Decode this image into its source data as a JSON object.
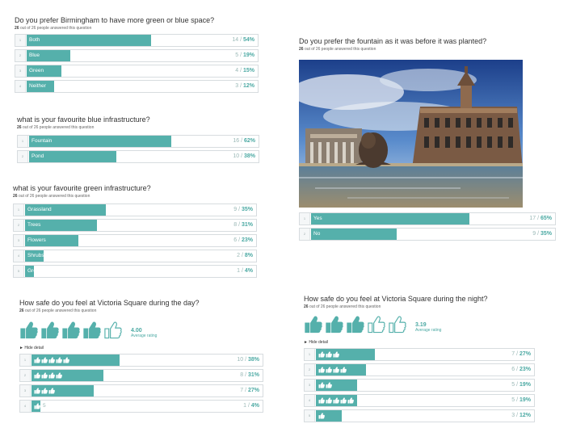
{
  "q1": {
    "title": "Do you prefer Birmingham to have more green or blue space?",
    "answered_count": "26",
    "answered_text": "out of 26 people answered this question",
    "options": [
      {
        "num": "1",
        "label": "Both",
        "count": "14",
        "pct": "54%",
        "fill": 0.54
      },
      {
        "num": "2",
        "label": "Blue",
        "count": "5",
        "pct": "19%",
        "fill": 0.19
      },
      {
        "num": "3",
        "label": "Green",
        "count": "4",
        "pct": "15%",
        "fill": 0.15
      },
      {
        "num": "4",
        "label": "Neither",
        "count": "3",
        "pct": "12%",
        "fill": 0.12
      }
    ]
  },
  "q2": {
    "title": "what is your favourite blue infrastructure?",
    "answered_count": "26",
    "answered_text": "out of 26 people answered this question",
    "options": [
      {
        "num": "1",
        "label": "Fountain",
        "count": "16",
        "pct": "62%",
        "fill": 0.62
      },
      {
        "num": "2",
        "label": "Pond",
        "count": "10",
        "pct": "38%",
        "fill": 0.38
      }
    ]
  },
  "q3": {
    "title": "what is your favourite green infrastructure?",
    "answered_count": "26",
    "answered_text": "out of 26 people answered this question",
    "options": [
      {
        "num": "1",
        "label": "Grassland",
        "count": "9",
        "pct": "35%",
        "fill": 0.35
      },
      {
        "num": "2",
        "label": "Trees",
        "count": "8",
        "pct": "31%",
        "fill": 0.31
      },
      {
        "num": "3",
        "label": "Flowers",
        "count": "6",
        "pct": "23%",
        "fill": 0.23
      },
      {
        "num": "4",
        "label": "Shrubs",
        "count": "2",
        "pct": "8%",
        "fill": 0.08
      },
      {
        "num": "5",
        "label": "Green-wall",
        "count": "1",
        "pct": "4%",
        "fill": 0.04
      }
    ]
  },
  "q4": {
    "title": "How safe do you feel at Victoria Square during the day?",
    "answered_count": "26",
    "answered_text": "out of 26 people answered this question",
    "rating_value": "4.00",
    "rating_label": "Average rating",
    "rating_level": 4.0,
    "hide_detail": "► Hide detail",
    "options": [
      {
        "num": "1",
        "thumbs": 5,
        "count": "10",
        "pct": "38%",
        "fill": 0.38
      },
      {
        "num": "2",
        "thumbs": 4,
        "count": "8",
        "pct": "31%",
        "fill": 0.31
      },
      {
        "num": "3",
        "thumbs": 3,
        "count": "7",
        "pct": "27%",
        "fill": 0.27
      },
      {
        "num": "4",
        "thumbs": 1,
        "extra": "5",
        "count": "1",
        "pct": "4%",
        "fill": 0.04
      }
    ]
  },
  "q5": {
    "title": "Do you prefer the fountain as it was before it was planted?",
    "answered_count": "26",
    "answered_text": "out of 26 people answered this question",
    "options": [
      {
        "num": "1",
        "label": "Yes",
        "count": "17",
        "pct": "65%",
        "fill": 0.65
      },
      {
        "num": "2",
        "label": "No",
        "count": "9",
        "pct": "35%",
        "fill": 0.35
      }
    ]
  },
  "q6": {
    "title": "How safe do you feel at Victoria Square during the night?",
    "answered_count": "26",
    "answered_text": "out of 26 people answered this question",
    "rating_value": "3.19",
    "rating_label": "Average rating",
    "rating_level": 3.19,
    "hide_detail": "► Hide detail",
    "options": [
      {
        "num": "1",
        "thumbs": 3,
        "count": "7",
        "pct": "27%",
        "fill": 0.27
      },
      {
        "num": "2",
        "thumbs": 4,
        "count": "6",
        "pct": "23%",
        "fill": 0.23
      },
      {
        "num": "3",
        "thumbs": 2,
        "count": "5",
        "pct": "19%",
        "fill": 0.19
      },
      {
        "num": "4",
        "thumbs": 5,
        "count": "5",
        "pct": "19%",
        "fill": 0.19
      },
      {
        "num": "5",
        "thumbs": 1,
        "count": "3",
        "pct": "12%",
        "fill": 0.12
      }
    ]
  },
  "colors": {
    "accent": "#55b0ab",
    "accent_text": "#4ba9a3",
    "border": "#d7dcdf"
  },
  "icons": {
    "thumb": "thumbs-up-icon"
  }
}
